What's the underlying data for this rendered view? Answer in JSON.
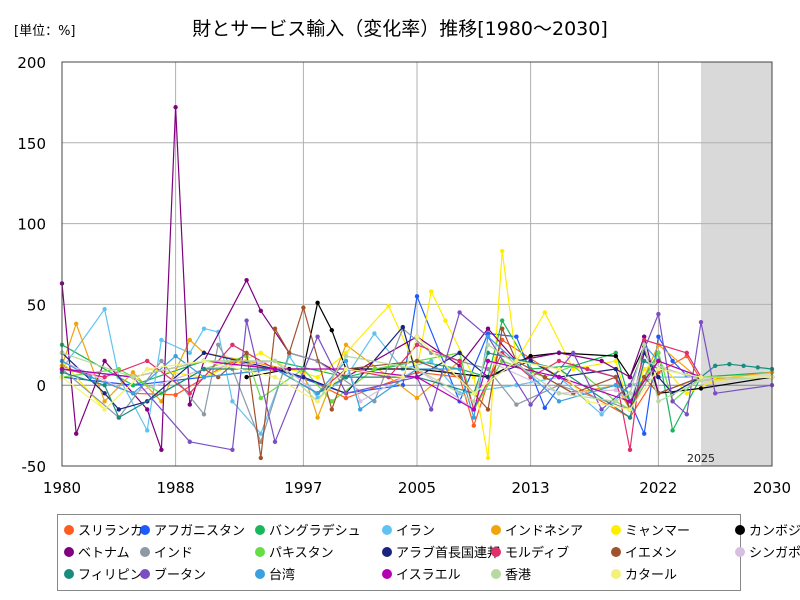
{
  "unit_label": "[単位：%]",
  "chart_data": {
    "type": "line",
    "title": "財とサービス輸入（変化率）推移[1980～2030]",
    "xlabel": "",
    "ylabel": "",
    "xlim": [
      1980,
      2030
    ],
    "ylim": [
      -50,
      200
    ],
    "x_ticks": [
      1980,
      1988,
      1997,
      2005,
      2013,
      2022,
      2030
    ],
    "y_ticks": [
      -50,
      0,
      50,
      100,
      150,
      200
    ],
    "grid": true,
    "legend_position": "bottom",
    "forecast_start": 2025,
    "forecast_label": "2025",
    "series": [
      {
        "name": "スリランカ",
        "color": "#ff5a1f",
        "x": [
          1980,
          1985,
          1988,
          1992,
          1997,
          2000,
          2005,
          2008,
          2009,
          2011,
          2015,
          2020,
          2022,
          2024,
          2025,
          2030
        ],
        "values": [
          12,
          -5,
          -6,
          15,
          5,
          -8,
          8,
          5,
          -25,
          28,
          5,
          -20,
          8,
          18,
          3,
          5
        ]
      },
      {
        "name": "アフガニスタン",
        "color": "#1e5bff",
        "x": [
          1980,
          1985,
          1990,
          1995,
          2000,
          2004,
          2005,
          2008,
          2010,
          2012,
          2014,
          2016,
          2019,
          2020,
          2021,
          2022,
          2023,
          2024,
          2025,
          2030
        ],
        "values": [
          5,
          0,
          5,
          10,
          -5,
          0,
          55,
          -10,
          32,
          30,
          -14,
          12,
          5,
          -10,
          -30,
          30,
          15,
          6,
          5,
          5
        ]
      },
      {
        "name": "バングラデシュ",
        "color": "#18b85a",
        "x": [
          1980,
          1985,
          1990,
          1995,
          2000,
          2005,
          2008,
          2010,
          2011,
          2013,
          2016,
          2019,
          2020,
          2021,
          2022,
          2023,
          2025,
          2030
        ],
        "values": [
          25,
          0,
          15,
          15,
          5,
          15,
          10,
          5,
          40,
          10,
          12,
          20,
          -10,
          5,
          20,
          -28,
          5,
          8
        ]
      },
      {
        "name": "イラン",
        "color": "#5fc3f2",
        "x": [
          1980,
          1983,
          1984,
          1986,
          1987,
          1989,
          1990,
          1991,
          1992,
          1994,
          1996,
          1998,
          2000,
          2002,
          2004,
          2006,
          2008,
          2012,
          2015,
          2018,
          2020,
          2022,
          2025,
          2030
        ],
        "values": [
          10,
          47,
          5,
          -28,
          28,
          20,
          35,
          33,
          -10,
          -30,
          18,
          -8,
          5,
          32,
          10,
          15,
          -5,
          0,
          5,
          -18,
          0,
          5,
          5,
          5
        ]
      },
      {
        "name": "インドネシア",
        "color": "#f0a30a",
        "x": [
          1980,
          1981,
          1983,
          1985,
          1987,
          1989,
          1990,
          1993,
          1997,
          1998,
          2000,
          2005,
          2008,
          2009,
          2011,
          2014,
          2016,
          2019,
          2020,
          2022,
          2025,
          2030
        ],
        "values": [
          12,
          38,
          -10,
          8,
          -10,
          28,
          20,
          15,
          8,
          -20,
          25,
          -8,
          15,
          -15,
          15,
          5,
          -5,
          0,
          -15,
          25,
          3,
          8
        ]
      },
      {
        "name": "ミャンマー",
        "color": "#ffee00",
        "x": [
          1980,
          1983,
          1986,
          1990,
          1994,
          1996,
          1998,
          2000,
          2003,
          2005,
          2006,
          2007,
          2009,
          2010,
          2011,
          2012,
          2014,
          2016,
          2019,
          2020,
          2021,
          2022,
          2024,
          2026,
          2030
        ],
        "values": [
          15,
          -15,
          10,
          5,
          20,
          10,
          5,
          20,
          49,
          10,
          58,
          40,
          5,
          -45,
          83,
          15,
          45,
          10,
          15,
          -15,
          10,
          15,
          -5,
          3,
          5
        ]
      },
      {
        "name": "カンボジア",
        "color": "#000000",
        "x": [
          1993,
          1996,
          1997,
          1998,
          1999,
          2000,
          2005,
          2010,
          2013,
          2015,
          2019,
          2020,
          2021,
          2022,
          2025,
          2030
        ],
        "values": [
          5,
          10,
          10,
          51,
          34,
          10,
          10,
          5,
          18,
          20,
          18,
          5,
          24,
          -5,
          -2,
          5
        ]
      },
      {
        "name": "ベトナム",
        "color": "#800080",
        "x": [
          1980,
          1981,
          1983,
          1986,
          1987,
          1988,
          1989,
          1990,
          1993,
          1994,
          1996,
          1998,
          2000,
          2005,
          2008,
          2010,
          2012,
          2015,
          2018,
          2020,
          2021,
          2022,
          2025,
          2030
        ],
        "values": [
          63,
          -30,
          15,
          -15,
          -40,
          172,
          -12,
          15,
          65,
          46,
          20,
          15,
          5,
          30,
          12,
          35,
          15,
          20,
          15,
          5,
          30,
          -5,
          5,
          5
        ]
      },
      {
        "name": "インド",
        "color": "#8c9aa5",
        "x": [
          1980,
          1984,
          1987,
          1990,
          1991,
          1992,
          1994,
          1996,
          1998,
          2002,
          2004,
          2006,
          2008,
          2010,
          2012,
          2015,
          2020,
          2022,
          2025,
          2030
        ],
        "values": [
          10,
          -20,
          15,
          -18,
          25,
          10,
          -35,
          20,
          15,
          -10,
          35,
          20,
          15,
          10,
          -12,
          0,
          -15,
          15,
          5,
          5
        ]
      },
      {
        "name": "パキスタン",
        "color": "#66dd44",
        "x": [
          1980,
          1984,
          1987,
          1990,
          1993,
          1994,
          1997,
          1999,
          2002,
          2005,
          2008,
          2009,
          2011,
          2014,
          2016,
          2019,
          2020,
          2022,
          2023,
          2025,
          2030
        ],
        "values": [
          5,
          10,
          -5,
          10,
          18,
          -8,
          10,
          -10,
          10,
          15,
          20,
          -15,
          15,
          5,
          12,
          -10,
          -15,
          20,
          -10,
          5,
          5
        ]
      },
      {
        "name": "アラブ首長国連邦",
        "color": "#1a237e",
        "x": [
          1980,
          1983,
          1984,
          1986,
          1990,
          1995,
          1997,
          2000,
          2004,
          2005,
          2008,
          2010,
          2013,
          2015,
          2019,
          2020,
          2021,
          2022,
          2023,
          2025,
          2030
        ],
        "values": [
          20,
          -5,
          -15,
          -10,
          20,
          10,
          5,
          -5,
          36,
          5,
          20,
          5,
          15,
          5,
          10,
          -15,
          20,
          5,
          -5,
          5,
          5
        ]
      },
      {
        "name": "モルディブ",
        "color": "#e0306a",
        "x": [
          1980,
          1983,
          1986,
          1989,
          1992,
          1995,
          1998,
          2000,
          2003,
          2005,
          2008,
          2009,
          2011,
          2013,
          2015,
          2017,
          2019,
          2020,
          2021,
          2024,
          2025,
          2030
        ],
        "values": [
          10,
          5,
          15,
          -5,
          25,
          10,
          -5,
          10,
          5,
          25,
          15,
          -15,
          20,
          5,
          15,
          10,
          5,
          -40,
          28,
          20,
          5,
          5
        ]
      },
      {
        "name": "イエメン",
        "color": "#a0522d",
        "x": [
          1990,
          1991,
          1993,
          1994,
          1995,
          1996,
          1997,
          1999,
          2000,
          2005,
          2008,
          2010,
          2011,
          2012,
          2014,
          2016,
          2019,
          2020,
          2021,
          2022,
          2025,
          2030
        ],
        "values": [
          10,
          5,
          20,
          -45,
          35,
          20,
          48,
          -15,
          10,
          15,
          5,
          -15,
          35,
          15,
          5,
          -5,
          5,
          -15,
          5,
          -5,
          5,
          5
        ]
      },
      {
        "name": "シンガポール",
        "color": "#d7bfe0",
        "x": [
          1980,
          1985,
          1990,
          1995,
          1998,
          2000,
          2001,
          2005,
          2009,
          2010,
          2015,
          2019,
          2020,
          2021,
          2025,
          2030
        ],
        "values": [
          15,
          -5,
          10,
          15,
          -5,
          15,
          -10,
          10,
          -15,
          15,
          -5,
          -3,
          -10,
          15,
          3,
          5
        ]
      },
      {
        "name": "フィリピン",
        "color": "#1a8c7e",
        "x": [
          1980,
          1983,
          1984,
          1990,
          1995,
          1998,
          2000,
          2005,
          2009,
          2010,
          2015,
          2020,
          2021,
          2022,
          2025,
          2026,
          2027,
          2028,
          2029,
          2030
        ],
        "values": [
          8,
          0,
          -20,
          10,
          10,
          -5,
          5,
          5,
          -5,
          20,
          10,
          -20,
          15,
          10,
          5,
          12,
          13,
          12,
          11,
          10
        ]
      },
      {
        "name": "ブータン",
        "color": "#7b4fc4",
        "x": [
          1980,
          1985,
          1989,
          1992,
          1993,
          1995,
          1998,
          2000,
          2005,
          2006,
          2008,
          2010,
          2013,
          2016,
          2018,
          2020,
          2022,
          2023,
          2024,
          2025,
          2026,
          2030
        ],
        "values": [
          10,
          5,
          -35,
          -40,
          40,
          -35,
          30,
          -5,
          5,
          -15,
          45,
          30,
          -12,
          20,
          -15,
          0,
          44,
          -10,
          -18,
          39,
          -5,
          0
        ]
      },
      {
        "name": "台湾",
        "color": "#3aa0e0",
        "x": [
          1980,
          1982,
          1985,
          1988,
          1990,
          1995,
          1998,
          2000,
          2001,
          2005,
          2008,
          2009,
          2010,
          2015,
          2019,
          2020,
          2021,
          2022,
          2025,
          2030
        ],
        "values": [
          15,
          5,
          -5,
          18,
          5,
          10,
          -5,
          15,
          -15,
          10,
          10,
          -20,
          30,
          -10,
          0,
          -5,
          25,
          15,
          5,
          5
        ]
      },
      {
        "name": "イスラエル",
        "color": "#b200b2",
        "x": [
          1980,
          1985,
          1990,
          1995,
          2000,
          2005,
          2009,
          2010,
          2015,
          2020,
          2022,
          2025,
          2030
        ],
        "values": [
          10,
          5,
          15,
          10,
          10,
          5,
          -15,
          15,
          5,
          -10,
          15,
          5,
          5
        ]
      },
      {
        "name": "香港",
        "color": "#b8d8a0",
        "x": [
          1980,
          1985,
          1990,
          1995,
          1998,
          2000,
          2005,
          2009,
          2010,
          2015,
          2019,
          2020,
          2021,
          2022,
          2025,
          2030
        ],
        "values": [
          20,
          5,
          15,
          15,
          -10,
          18,
          10,
          -10,
          25,
          -5,
          -10,
          -5,
          25,
          -10,
          3,
          5
        ]
      },
      {
        "name": "カタール",
        "color": "#f2f27a",
        "x": [
          1980,
          1983,
          1986,
          1990,
          1995,
          1998,
          2000,
          2004,
          2005,
          2009,
          2012,
          2015,
          2017,
          2020,
          2022,
          2025,
          2030
        ],
        "values": [
          5,
          -15,
          10,
          15,
          5,
          -10,
          10,
          5,
          30,
          -5,
          15,
          10,
          -10,
          -15,
          10,
          5,
          5
        ]
      }
    ]
  }
}
